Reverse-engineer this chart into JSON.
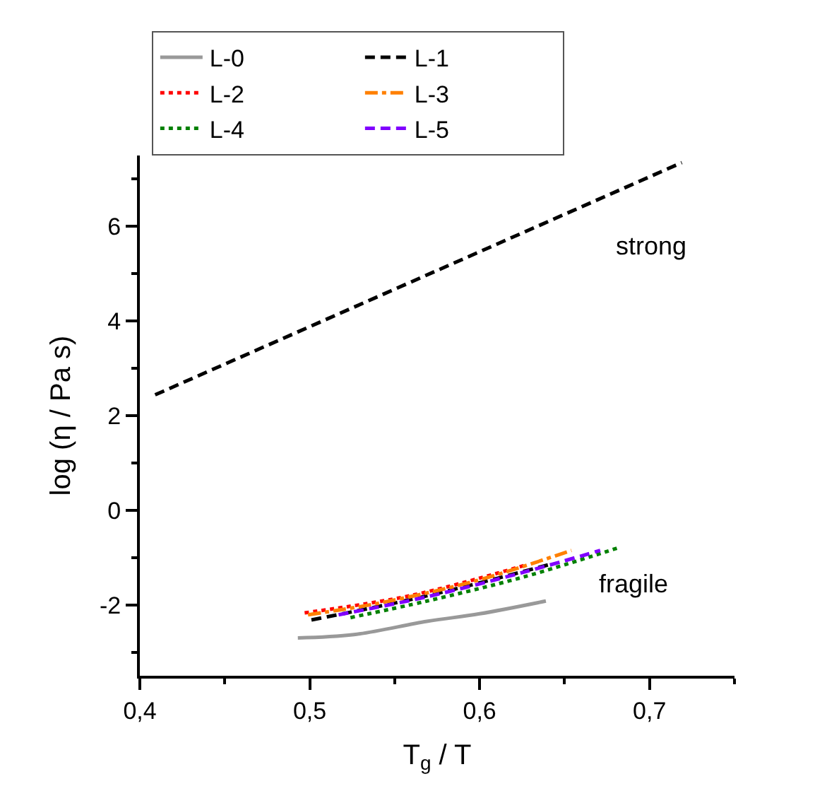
{
  "chart_data": {
    "type": "line",
    "xlabel": "T$_{g}$ / T",
    "ylabel": "log (η / Pa s)",
    "xlim": [
      0.4,
      0.75
    ],
    "ylim": [
      -3.5,
      7.5
    ],
    "xticks": [
      {
        "value": 0.4,
        "label": "0,4"
      },
      {
        "value": 0.45,
        "label": null
      },
      {
        "value": 0.5,
        "label": "0,5"
      },
      {
        "value": 0.55,
        "label": null
      },
      {
        "value": 0.6,
        "label": "0,6"
      },
      {
        "value": 0.65,
        "label": null
      },
      {
        "value": 0.7,
        "label": "0,7"
      },
      {
        "value": 0.75,
        "label": null
      }
    ],
    "yticks": [
      {
        "value": -3,
        "label": null
      },
      -2,
      {
        "value": -1,
        "label": null
      },
      0,
      {
        "value": 1,
        "label": null
      },
      2,
      {
        "value": 3,
        "label": null
      },
      4,
      {
        "value": 5,
        "label": null
      },
      6,
      {
        "value": 7,
        "label": null
      }
    ],
    "grid": false,
    "legend": "top left",
    "marker": "none",
    "series": [
      {
        "name": "L-0",
        "color": "#999999",
        "line_style": "solid",
        "x": [
          0.493,
          0.526,
          0.569,
          0.6,
          0.639
        ],
        "values": [
          -2.7,
          -2.63,
          -2.35,
          -2.19,
          -1.92
        ]
      },
      {
        "name": "L-1",
        "color": "#000000",
        "line_style": "dashed",
        "x": [
          0.501,
          0.569,
          0.643
        ],
        "values": [
          -2.32,
          -1.81,
          -1.13
        ]
      },
      {
        "name": "L-2",
        "color": "#ff0000",
        "line_style": "dotted",
        "x": [
          0.497,
          0.56,
          0.628
        ],
        "values": [
          -2.17,
          -1.8,
          -1.15
        ]
      },
      {
        "name": "L-3",
        "color": "#ff8000",
        "line_style": "dashdot",
        "x": [
          0.499,
          0.54,
          0.597,
          0.654
        ],
        "values": [
          -2.21,
          -1.97,
          -1.5,
          -0.85
        ]
      },
      {
        "name": "L-4",
        "color": "#008000",
        "line_style": "dotted",
        "x": [
          0.524,
          0.569,
          0.626,
          0.681
        ],
        "values": [
          -2.27,
          -1.92,
          -1.41,
          -0.8
        ]
      },
      {
        "name": "L-5",
        "color": "#8000ff",
        "line_style": "dashed",
        "x": [
          0.517,
          0.569,
          0.626,
          0.671
        ],
        "values": [
          -2.21,
          -1.83,
          -1.31,
          -0.85
        ]
      },
      {
        "color": "#000000",
        "line_style": "dashed",
        "x": [
          0.409,
          0.719
        ],
        "values": [
          2.44,
          7.35
        ]
      }
    ],
    "annotations": [
      "strong",
      "fragile"
    ]
  }
}
